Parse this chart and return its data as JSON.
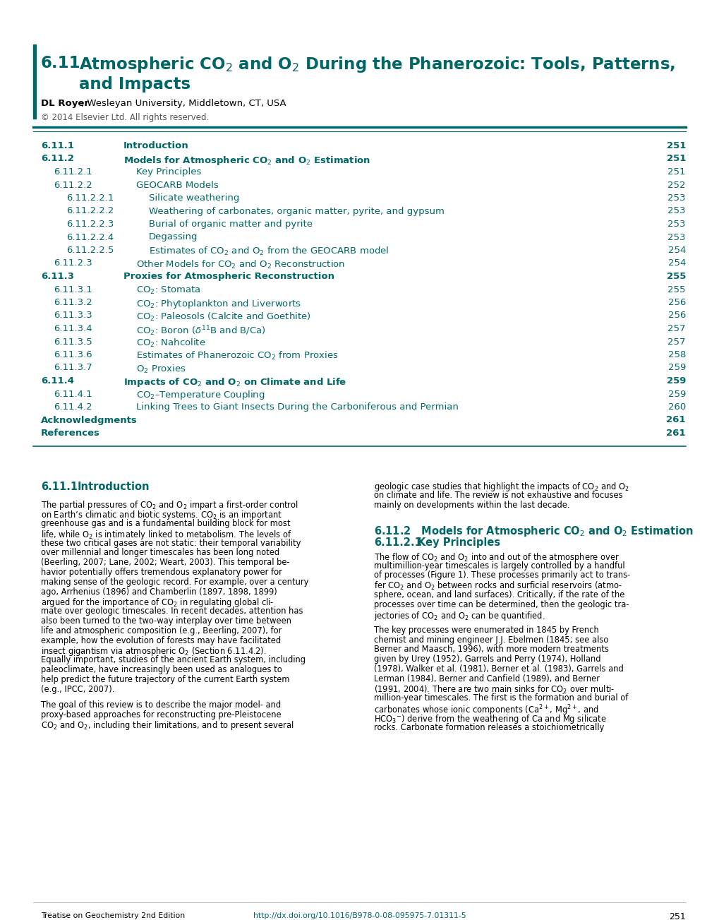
{
  "toc_color": "#006666",
  "black": "#000000",
  "gray": "#555555",
  "link_color": "#006666",
  "background": "#ffffff",
  "title_num": "6.11",
  "title_line1": "Atmospheric CO$_{2}$ and O$_{2}$ During the Phanerozoic: Tools, Patterns,",
  "title_line2": "and Impacts",
  "author_bold": "DL Royer",
  "author_rest": ", Wesleyan University, Middletown, CT, USA",
  "copyright": "© 2014 Elsevier Ltd. All rights reserved.",
  "toc_entries": [
    {
      "number": "6.11.1",
      "title": "Introduction",
      "page": "251",
      "bold": true,
      "indent": 0
    },
    {
      "number": "6.11.2",
      "title": "Models for Atmospheric CO$_{2}$ and O$_{2}$ Estimation",
      "page": "251",
      "bold": true,
      "indent": 0
    },
    {
      "number": "6.11.2.1",
      "title": "Key Principles",
      "page": "251",
      "bold": false,
      "indent": 1
    },
    {
      "number": "6.11.2.2",
      "title": "GEOCARB Models",
      "page": "252",
      "bold": false,
      "indent": 1
    },
    {
      "number": "6.11.2.2.1",
      "title": "Silicate weathering",
      "page": "253",
      "bold": false,
      "indent": 2
    },
    {
      "number": "6.11.2.2.2",
      "title": "Weathering of carbonates, organic matter, pyrite, and gypsum",
      "page": "253",
      "bold": false,
      "indent": 2
    },
    {
      "number": "6.11.2.2.3",
      "title": "Burial of organic matter and pyrite",
      "page": "253",
      "bold": false,
      "indent": 2
    },
    {
      "number": "6.11.2.2.4",
      "title": "Degassing",
      "page": "253",
      "bold": false,
      "indent": 2
    },
    {
      "number": "6.11.2.2.5",
      "title": "Estimates of CO$_{2}$ and O$_{2}$ from the GEOCARB model",
      "page": "254",
      "bold": false,
      "indent": 2
    },
    {
      "number": "6.11.2.3",
      "title": "Other Models for CO$_{2}$ and O$_{2}$ Reconstruction",
      "page": "254",
      "bold": false,
      "indent": 1
    },
    {
      "number": "6.11.3",
      "title": "Proxies for Atmospheric Reconstruction",
      "page": "255",
      "bold": true,
      "indent": 0
    },
    {
      "number": "6.11.3.1",
      "title": "CO$_{2}$: Stomata",
      "page": "255",
      "bold": false,
      "indent": 1
    },
    {
      "number": "6.11.3.2",
      "title": "CO$_{2}$: Phytoplankton and Liverworts",
      "page": "256",
      "bold": false,
      "indent": 1
    },
    {
      "number": "6.11.3.3",
      "title": "CO$_{2}$: Paleosols (Calcite and Goethite)",
      "page": "256",
      "bold": false,
      "indent": 1
    },
    {
      "number": "6.11.3.4",
      "title": "CO$_{2}$: Boron ($\\delta^{11}$B and B/Ca)",
      "page": "257",
      "bold": false,
      "indent": 1
    },
    {
      "number": "6.11.3.5",
      "title": "CO$_{2}$: Nahcolite",
      "page": "257",
      "bold": false,
      "indent": 1
    },
    {
      "number": "6.11.3.6",
      "title": "Estimates of Phanerozoic CO$_{2}$ from Proxies",
      "page": "258",
      "bold": false,
      "indent": 1
    },
    {
      "number": "6.11.3.7",
      "title": "O$_{2}$ Proxies",
      "page": "259",
      "bold": false,
      "indent": 1
    },
    {
      "number": "6.11.4",
      "title": "Impacts of CO$_{2}$ and O$_{2}$ on Climate and Life",
      "page": "259",
      "bold": true,
      "indent": 0
    },
    {
      "number": "6.11.4.1",
      "title": "CO$_{2}$–Temperature Coupling",
      "page": "259",
      "bold": false,
      "indent": 1
    },
    {
      "number": "6.11.4.2",
      "title": "Linking Trees to Giant Insects During the Carboniferous and Permian",
      "page": "260",
      "bold": false,
      "indent": 1
    },
    {
      "number": "Acknowledgments",
      "title": "",
      "page": "261",
      "bold": true,
      "indent": 0
    },
    {
      "number": "References",
      "title": "",
      "page": "261",
      "bold": true,
      "indent": 0
    }
  ],
  "left_body_lines": [
    "The partial pressures of CO$_{2}$ and O$_{2}$ impart a first-order control",
    "on Earth’s climatic and biotic systems. CO$_{2}$ is an important",
    "greenhouse gas and is a fundamental building block for most",
    "life, while O$_{2}$ is intimately linked to metabolism. The levels of",
    "these two critical gases are not static: their temporal variability",
    "over millennial and longer timescales has been long noted",
    "(Beerling, 2007; Lane, 2002; Weart, 2003). This temporal be-",
    "havior potentially offers tremendous explanatory power for",
    "making sense of the geologic record. For example, over a century",
    "ago, Arrhenius (1896) and Chamberlin (1897, 1898, 1899)",
    "argued for the importance of CO$_{2}$ in regulating global cli-",
    "mate over geologic timescales. In recent decades, attention has",
    "also been turned to the two-way interplay over time between",
    "life and atmospheric composition (e.g., Beerling, 2007), for",
    "example, how the evolution of forests may have facilitated",
    "insect gigantism via atmospheric O$_{2}$ (Section 6.11.4.2).",
    "Equally important, studies of the ancient Earth system, including",
    "paleoclimate, have increasingly been used as analogues to",
    "help predict the future trajectory of the current Earth system",
    "(e.g., IPCC, 2007).",
    "",
    "The goal of this review is to describe the major model- and",
    "proxy-based approaches for reconstructing pre-Pleistocene",
    "CO$_{2}$ and O$_{2}$, including their limitations, and to present several"
  ],
  "right_body_lines_1": [
    "geologic case studies that highlight the impacts of CO$_{2}$ and O$_{2}$",
    "on climate and life. The review is not exhaustive and focuses",
    "mainly on developments within the last decade."
  ],
  "right_body_lines_2": [
    "The flow of CO$_{2}$ and O$_{2}$ into and out of the atmosphere over",
    "multimillion-year timescales is largely controlled by a handful",
    "of processes (Figure 1). These processes primarily act to trans-",
    "fer CO$_{2}$ and O$_{2}$ between rocks and surficial reservoirs (atmo-",
    "sphere, ocean, and land surfaces). Critically, if the rate of the",
    "processes over time can be determined, then the geologic tra-",
    "jectories of CO$_{2}$ and O$_{2}$ can be quantified.",
    "",
    "The key processes were enumerated in 1845 by French",
    "chemist and mining engineer J.J. Ebelmen (1845; see also",
    "Berner and Maasch, 1996), with more modern treatments",
    "given by Urey (1952), Garrels and Perry (1974), Holland",
    "(1978), Walker et al. (1981), Berner et al. (1983), Garrels and",
    "Lerman (1984), Berner and Canfield (1989), and Berner",
    "(1991, 2004). There are two main sinks for CO$_{2}$ over multi-",
    "million-year timescales. The first is the formation and burial of",
    "carbonates whose ionic components (Ca$^{2+}$, Mg$^{2+}$, and",
    "HCO$_{3}$$^{-}$) derive from the weathering of Ca and Mg silicate",
    "rocks. Carbonate formation releases a stoichiometrically"
  ],
  "footer_left": "Treatise on Geochemistry 2nd Edition",
  "footer_url": "http://dx.doi.org/10.1016/B978-0-08-095975-7.01311-5",
  "footer_page": "251"
}
